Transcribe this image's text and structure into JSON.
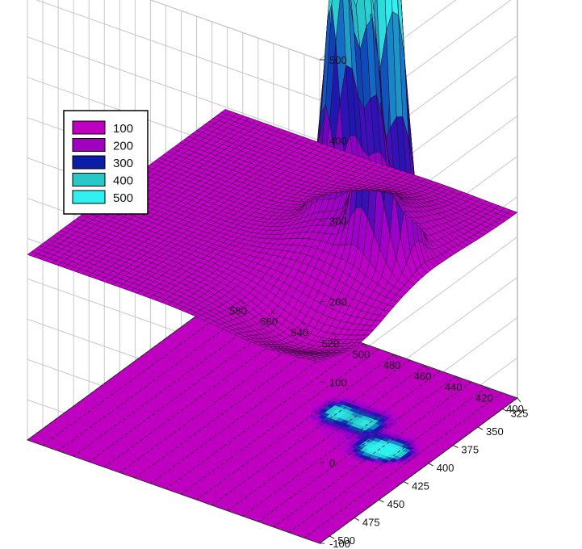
{
  "chart_data": {
    "type": "surface3d",
    "title": "",
    "xlabel": "",
    "ylabel": "",
    "zlabel": "",
    "x_ticks": [
      400,
      420,
      440,
      460,
      480,
      500,
      520,
      540,
      560,
      580
    ],
    "y_ticks": [
      325,
      350,
      375,
      400,
      425,
      450,
      475,
      500
    ],
    "z_ticks": [
      -100,
      0,
      100,
      200,
      300,
      400,
      500
    ],
    "xlim": [
      400,
      590
    ],
    "ylim": [
      310,
      510
    ],
    "zlim": [
      -100,
      500
    ],
    "legend": [
      {
        "label": "100",
        "color": "#c000c0"
      },
      {
        "label": "200",
        "color": "#a000c0"
      },
      {
        "label": "300",
        "color": "#0a1ea8"
      },
      {
        "label": "400",
        "color": "#28c8c8"
      },
      {
        "label": "500",
        "color": "#30f0f0"
      }
    ],
    "legend_position": "top-left",
    "base_level": 130,
    "peaks": [
      {
        "x": 470,
        "y": 382,
        "height": 340
      },
      {
        "x": 452,
        "y": 383,
        "height": 300
      },
      {
        "x": 433,
        "y": 403,
        "height": 370
      },
      {
        "x": 422,
        "y": 400,
        "height": 320
      }
    ],
    "floor_contour": true,
    "grid": true
  }
}
